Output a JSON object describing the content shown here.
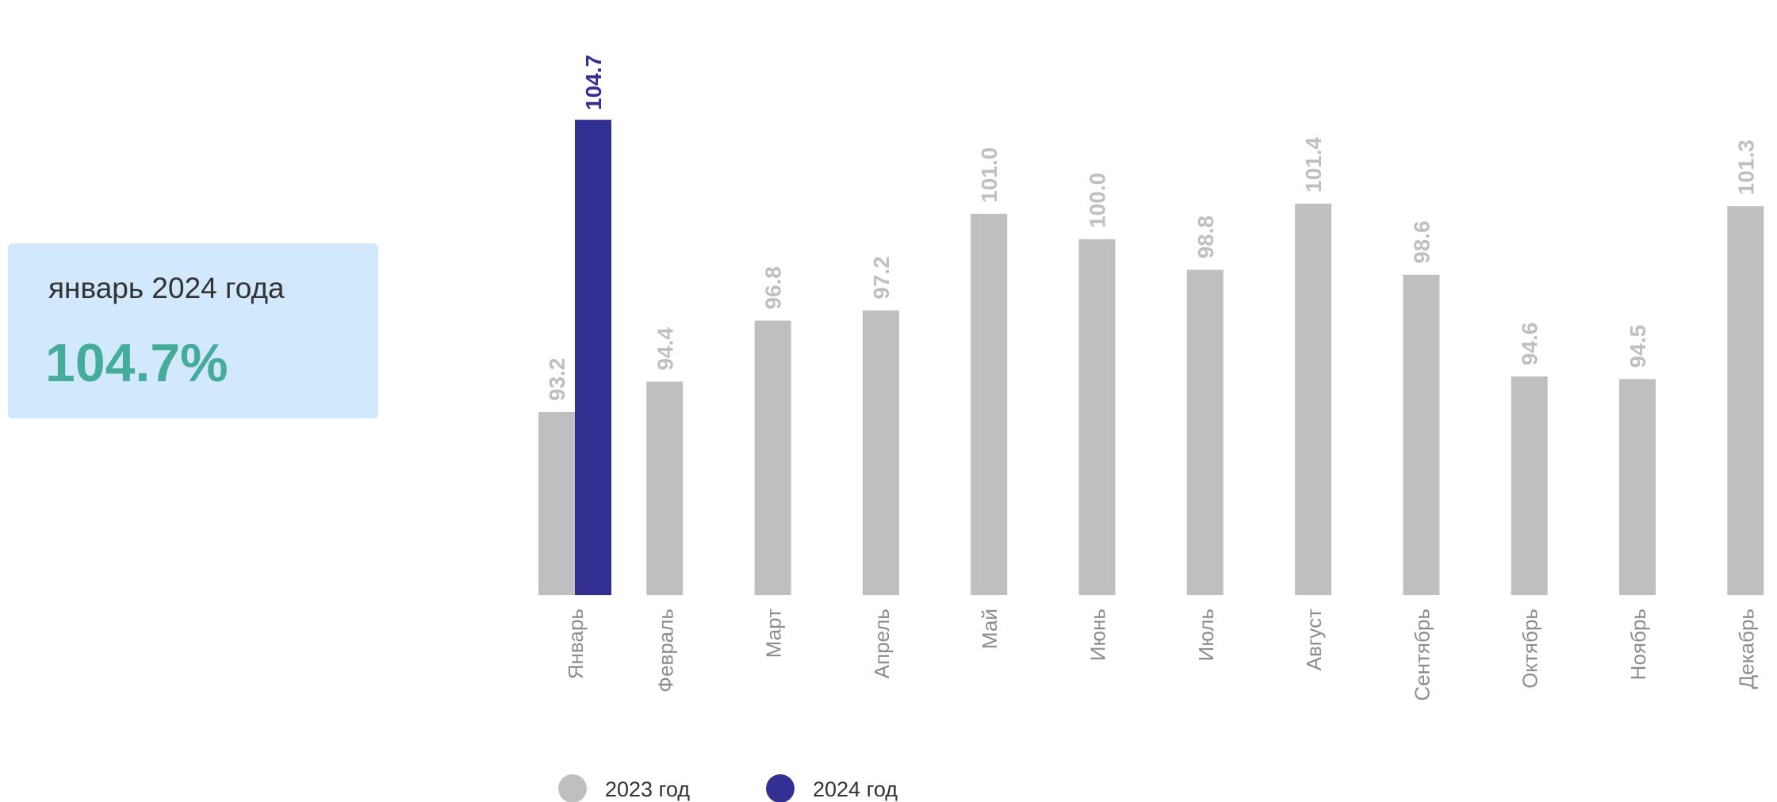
{
  "kpi": {
    "label": "январь 2024 года",
    "value": "104.7%"
  },
  "colors": {
    "series_2023": "#bfbfbf",
    "series_2024": "#332e91",
    "kpi_value": "#45ab9a",
    "card_background": "#d2e8fd"
  },
  "chart_data": {
    "type": "bar",
    "title": "",
    "xlabel": "",
    "ylabel": "",
    "categories": [
      "Январь",
      "Февраль",
      "Март",
      "Апрель",
      "Май",
      "Июнь",
      "Июль",
      "Август",
      "Сентябрь",
      "Октябрь",
      "Ноябрь",
      "Декабрь"
    ],
    "series": [
      {
        "name": "2023 год",
        "values": [
          93.2,
          94.4,
          96.8,
          97.2,
          101.0,
          100.0,
          98.8,
          101.4,
          98.6,
          94.6,
          94.5,
          101.3
        ],
        "labels": [
          "93.2",
          "94.4",
          "96.8",
          "97.2",
          "101.0",
          "100.0",
          "98.8",
          "101.4",
          "98.6",
          "94.6",
          "94.5",
          "101.3"
        ]
      },
      {
        "name": "2024 год",
        "values": [
          104.7,
          null,
          null,
          null,
          null,
          null,
          null,
          null,
          null,
          null,
          null,
          null
        ],
        "labels": [
          "104.7",
          "",
          "",
          "",
          "",
          "",
          "",
          "",
          "",
          "",
          "",
          ""
        ]
      }
    ],
    "ylim": [
      86.0,
      106.2
    ],
    "grid": false,
    "legend": "bottom-left"
  }
}
